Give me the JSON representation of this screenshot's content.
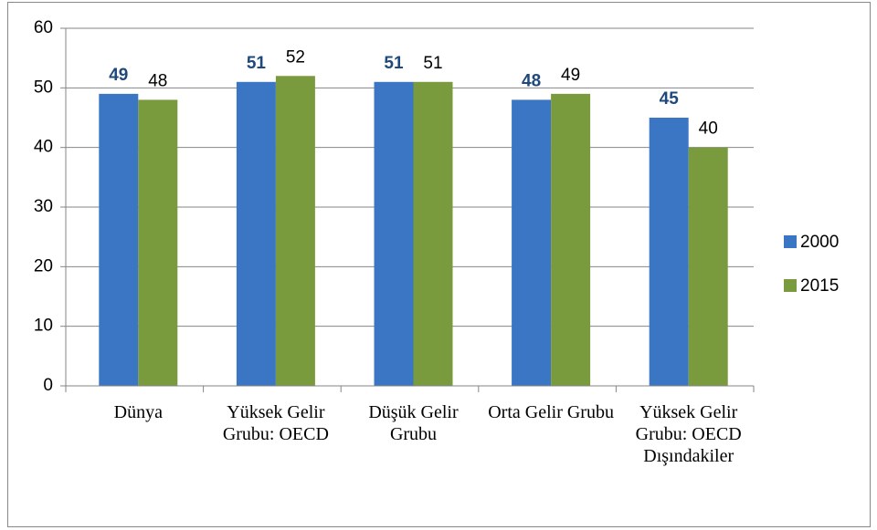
{
  "chart_data": {
    "type": "bar",
    "categories": [
      "Dünya",
      "Yüksek Gelir Grubu: OECD",
      "Düşük Gelir Grubu",
      "Orta Gelir Grubu",
      "Yüksek Gelir Grubu: OECD Dışındakiler"
    ],
    "series": [
      {
        "name": "2000",
        "color": "#3a76c4",
        "values": [
          49,
          51,
          51,
          48,
          45
        ]
      },
      {
        "name": "2015",
        "color": "#7a9a3e",
        "values": [
          48,
          52,
          51,
          49,
          40
        ]
      }
    ],
    "ylim": [
      0,
      60
    ],
    "yticks": [
      0,
      10,
      20,
      30,
      40,
      50,
      60
    ],
    "grid": true,
    "legend": "right"
  }
}
